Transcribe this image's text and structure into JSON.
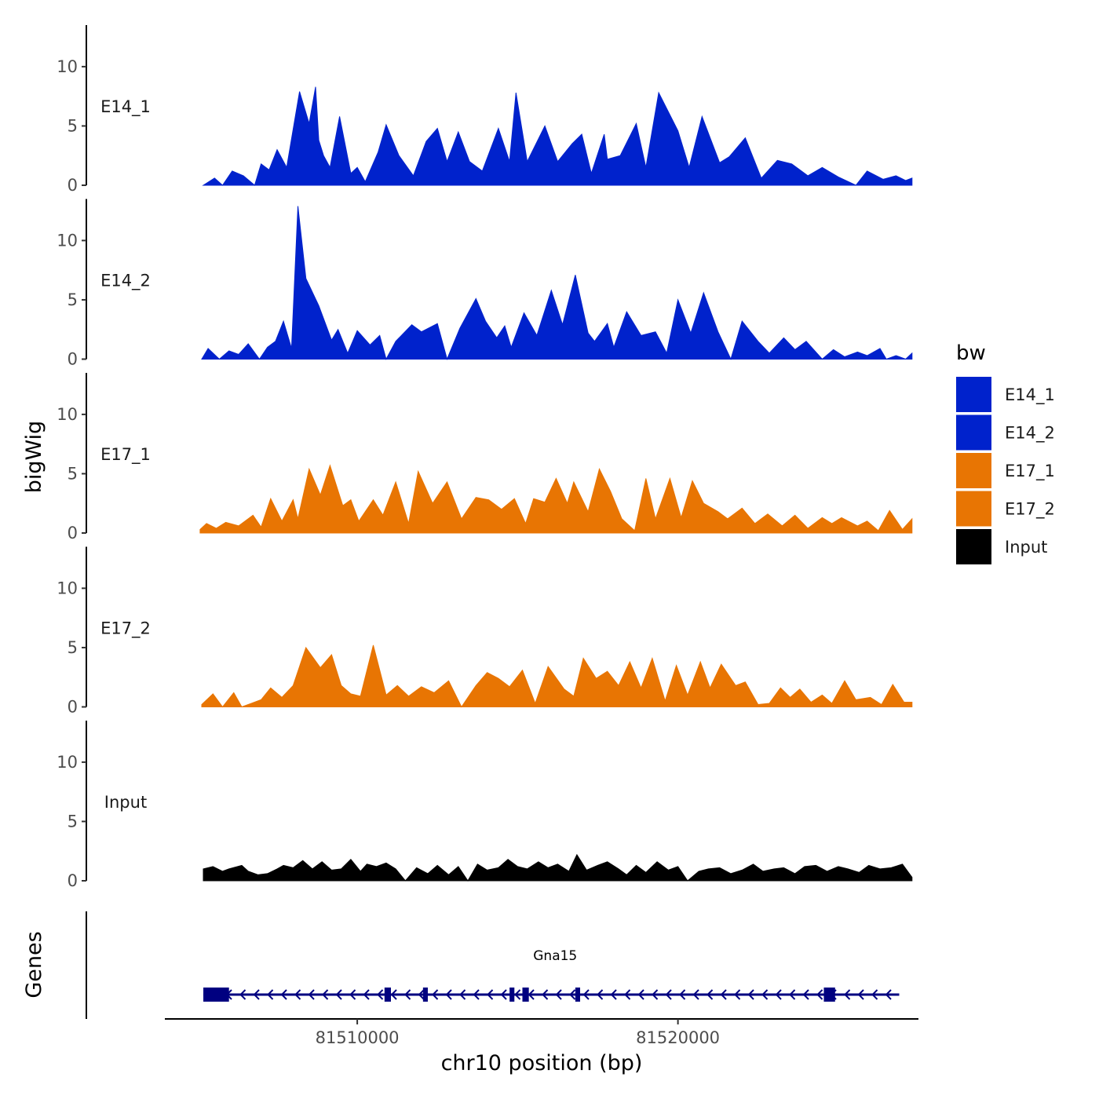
{
  "chart_data": {
    "type": "area",
    "xlabel": "chr10 position (bp)",
    "ylabel": "bigWig",
    "genes_label": "Genes",
    "xlim": [
      81504000,
      81527500
    ],
    "ylim": [
      0,
      13.5
    ],
    "y_ticks": [
      0,
      5,
      10
    ],
    "x_ticks": [
      81510000,
      81520000
    ],
    "legend": {
      "title": "bw",
      "position": "right",
      "entries": [
        {
          "name": "E14_1",
          "color": "#0022CC"
        },
        {
          "name": "E14_2",
          "color": "#0022CC"
        },
        {
          "name": "E17_1",
          "color": "#E87503"
        },
        {
          "name": "E17_2",
          "color": "#E87503"
        },
        {
          "name": "Input",
          "color": "#000000"
        }
      ]
    },
    "series": [
      {
        "name": "E14_1",
        "color": "#0022CC",
        "x": [
          81505200,
          81505550,
          81505800,
          81506100,
          81506450,
          81506800,
          81507000,
          81507250,
          81507500,
          81507800,
          81508200,
          81508500,
          81508700,
          81508800,
          81508950,
          81509150,
          81509450,
          81509800,
          81510000,
          81510250,
          81510650,
          81510900,
          81511300,
          81511750,
          81512150,
          81512500,
          81512800,
          81513150,
          81513500,
          81513900,
          81514400,
          81514750,
          81514950,
          81515300,
          81515850,
          81516250,
          81516700,
          81517000,
          81517300,
          81517700,
          81517800,
          81518200,
          81518700,
          81519000,
          81519400,
          81520000,
          81520350,
          81520750,
          81521300,
          81521600,
          81522100,
          81522600,
          81523100,
          81523550,
          81524050,
          81524500,
          81525000,
          81525550,
          81525900,
          81526400,
          81526800,
          81527100,
          81527300
        ],
        "values": [
          0,
          0.6,
          0,
          1.2,
          0.8,
          0,
          1.8,
          1.3,
          3,
          1.5,
          7.9,
          5.2,
          8.3,
          3.8,
          2.5,
          1.5,
          5.8,
          1,
          1.5,
          0.3,
          2.8,
          5.1,
          2.5,
          0.8,
          3.7,
          4.8,
          2,
          4.5,
          2,
          1.2,
          4.8,
          2,
          7.8,
          2,
          5,
          2,
          3.5,
          4.3,
          1,
          4.3,
          2.2,
          2.5,
          5.2,
          1.5,
          7.8,
          4.6,
          1.5,
          5.8,
          1.9,
          2.4,
          4,
          0.6,
          2.1,
          1.8,
          0.8,
          1.5,
          0.7,
          0,
          1.2,
          0.5,
          0.8,
          0.4,
          0.6
        ]
      },
      {
        "name": "E14_2",
        "color": "#0022CC",
        "x": [
          81505150,
          81505350,
          81505700,
          81506000,
          81506300,
          81506600,
          81506950,
          81507200,
          81507450,
          81507700,
          81507950,
          81508150,
          81508400,
          81508800,
          81509200,
          81509400,
          81509700,
          81510000,
          81510400,
          81510700,
          81510900,
          81511200,
          81511700,
          81512000,
          81512500,
          81512800,
          81513200,
          81513700,
          81514000,
          81514350,
          81514600,
          81514800,
          81515200,
          81515600,
          81516050,
          81516400,
          81516800,
          81517200,
          81517400,
          81517800,
          81518000,
          81518400,
          81518850,
          81519300,
          81519650,
          81520000,
          81520400,
          81520800,
          81521250,
          81521650,
          81522000,
          81522500,
          81522850,
          81523300,
          81523650,
          81524000,
          81524500,
          81524850,
          81525200,
          81525600,
          81525900,
          81526300,
          81526500,
          81526800,
          81527100,
          81527300
        ],
        "values": [
          0,
          0.9,
          0,
          0.7,
          0.4,
          1.3,
          0,
          1,
          1.5,
          3.2,
          0.9,
          12.9,
          6.8,
          4.5,
          1.6,
          2.5,
          0.5,
          2.4,
          1.2,
          2,
          0,
          1.5,
          2.9,
          2.3,
          3,
          0,
          2.6,
          5.1,
          3.2,
          1.8,
          2.8,
          1,
          3.9,
          2,
          5.8,
          2.9,
          7.1,
          2.2,
          1.5,
          3,
          1,
          4,
          2,
          2.3,
          0.5,
          5,
          2.2,
          5.6,
          2.3,
          0,
          3.2,
          1.5,
          0.5,
          1.8,
          0.8,
          1.5,
          0,
          0.8,
          0.2,
          0.6,
          0.3,
          0.9,
          0,
          0.3,
          0,
          0.5
        ]
      },
      {
        "name": "E17_1",
        "color": "#E87503",
        "x": [
          81505100,
          81505300,
          81505600,
          81505900,
          81506300,
          81506750,
          81507000,
          81507300,
          81507650,
          81508000,
          81508150,
          81508500,
          81508850,
          81509150,
          81509550,
          81509800,
          81510050,
          81510500,
          81510800,
          81511200,
          81511600,
          81511900,
          81512350,
          81512800,
          81513250,
          81513700,
          81514100,
          81514500,
          81514900,
          81515250,
          81515500,
          81515850,
          81516200,
          81516550,
          81516750,
          81517200,
          81517550,
          81517900,
          81518250,
          81518650,
          81519000,
          81519300,
          81519750,
          81520100,
          81520450,
          81520800,
          81521250,
          81521550,
          81522000,
          81522400,
          81522800,
          81523250,
          81523650,
          81524050,
          81524500,
          81524800,
          81525100,
          81525600,
          81525900,
          81526250,
          81526600,
          81527000,
          81527300
        ],
        "values": [
          0.3,
          0.8,
          0.4,
          0.9,
          0.6,
          1.5,
          0.5,
          2.9,
          1,
          2.8,
          1.2,
          5.4,
          3.2,
          5.7,
          2.3,
          2.8,
          1,
          2.8,
          1.5,
          4.3,
          0.8,
          5.2,
          2.5,
          4.3,
          1.2,
          3,
          2.8,
          2,
          2.9,
          0.8,
          2.9,
          2.6,
          4.6,
          2.5,
          4.3,
          1.8,
          5.4,
          3.5,
          1.2,
          0.2,
          4.6,
          1.2,
          4.6,
          1.3,
          4.4,
          2.5,
          1.8,
          1.2,
          2.1,
          0.8,
          1.6,
          0.6,
          1.5,
          0.4,
          1.3,
          0.8,
          1.3,
          0.6,
          1,
          0.2,
          1.9,
          0.3,
          1.2
        ]
      },
      {
        "name": "E17_2",
        "color": "#E87503",
        "x": [
          81505150,
          81505500,
          81505800,
          81506150,
          81506400,
          81506700,
          81507000,
          81507300,
          81507650,
          81508000,
          81508400,
          81508850,
          81509200,
          81509500,
          81509800,
          81510100,
          81510500,
          81510900,
          81511250,
          81511600,
          81512000,
          81512400,
          81512850,
          81513250,
          81513700,
          81514050,
          81514400,
          81514750,
          81515150,
          81515550,
          81515950,
          81516450,
          81516750,
          81517050,
          81517450,
          81517800,
          81518150,
          81518500,
          81518850,
          81519200,
          81519600,
          81519950,
          81520300,
          81520700,
          81521000,
          81521350,
          81521800,
          81522100,
          81522500,
          81522850,
          81523200,
          81523500,
          81523800,
          81524150,
          81524500,
          81524800,
          81525200,
          81525550,
          81526000,
          81526350,
          81526700,
          81527050,
          81527300
        ],
        "values": [
          0.2,
          1.1,
          0,
          1.2,
          0,
          0.3,
          0.6,
          1.6,
          0.8,
          1.8,
          5,
          3.3,
          4.4,
          1.8,
          1.1,
          0.9,
          5.2,
          1,
          1.8,
          0.9,
          1.7,
          1.2,
          2.2,
          0,
          1.8,
          2.9,
          2.4,
          1.7,
          3.1,
          0.3,
          3.4,
          1.5,
          0.9,
          4.1,
          2.4,
          3,
          1.8,
          3.8,
          1.6,
          4.1,
          0.5,
          3.5,
          1,
          3.8,
          1.6,
          3.6,
          1.8,
          2.1,
          0.2,
          0.3,
          1.6,
          0.8,
          1.5,
          0.4,
          1,
          0.3,
          2.2,
          0.6,
          0.8,
          0.2,
          1.9,
          0.4,
          0.4
        ]
      },
      {
        "name": "Input",
        "color": "#000000",
        "x": [
          81505200,
          81505500,
          81505800,
          81506000,
          81506400,
          81506600,
          81506900,
          81507200,
          81507500,
          81507700,
          81508000,
          81508300,
          81508600,
          81508900,
          81509200,
          81509500,
          81509800,
          81510100,
          81510300,
          81510600,
          81510900,
          81511200,
          81511500,
          81511850,
          81512200,
          81512500,
          81512850,
          81513150,
          81513450,
          81513750,
          81514050,
          81514400,
          81514700,
          81515000,
          81515300,
          81515650,
          81515950,
          81516250,
          81516600,
          81516850,
          81517150,
          81517500,
          81517800,
          81518150,
          81518400,
          81518700,
          81519000,
          81519350,
          81519700,
          81520000,
          81520300,
          81520650,
          81520950,
          81521300,
          81521650,
          81522000,
          81522350,
          81522650,
          81523000,
          81523300,
          81523650,
          81523950,
          81524300,
          81524650,
          81525000,
          81525300,
          81525650,
          81525950,
          81526300,
          81526650,
          81527000,
          81527300
        ],
        "values": [
          1,
          1.2,
          0.8,
          1,
          1.3,
          0.8,
          0.5,
          0.6,
          1,
          1.3,
          1.1,
          1.7,
          1,
          1.6,
          0.9,
          1,
          1.8,
          0.8,
          1.4,
          1.2,
          1.5,
          1,
          0,
          1.1,
          0.6,
          1.3,
          0.5,
          1.2,
          0,
          1.4,
          0.9,
          1.1,
          1.8,
          1.2,
          1,
          1.6,
          1.1,
          1.4,
          0.8,
          2.2,
          0.9,
          1.3,
          1.6,
          1,
          0.5,
          1.3,
          0.7,
          1.6,
          0.9,
          1.2,
          0,
          0.8,
          1,
          1.1,
          0.6,
          0.9,
          1.4,
          0.8,
          1,
          1.1,
          0.6,
          1.2,
          1.3,
          0.8,
          1.2,
          1,
          0.7,
          1.3,
          1,
          1.1,
          1.4,
          0.3
        ]
      }
    ],
    "genes": [
      {
        "name": "Gna15",
        "strand": "-",
        "start": 81505200,
        "end": 81526900,
        "exons": [
          [
            81505200,
            81506000
          ],
          [
            81510850,
            81511050
          ],
          [
            81512050,
            81512200
          ],
          [
            81514750,
            81514900
          ],
          [
            81515150,
            81515350
          ],
          [
            81516800,
            81516950
          ],
          [
            81524550,
            81524900
          ]
        ]
      }
    ]
  }
}
